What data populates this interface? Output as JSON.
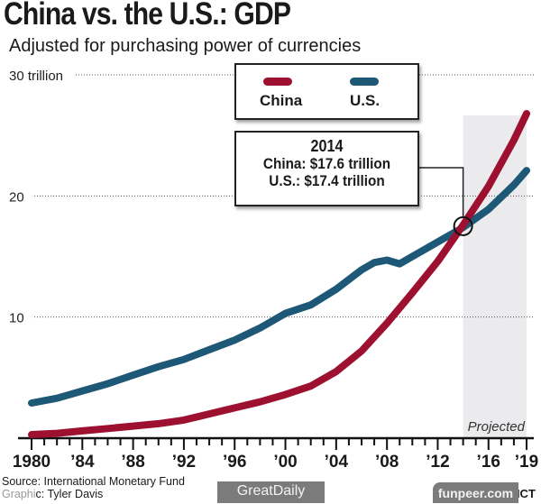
{
  "chart_data": {
    "type": "line",
    "title": "China vs. the U.S.: GDP",
    "subtitle": "Adjusted for purchasing power of currencies",
    "xlabel": "",
    "ylabel": "",
    "xlim": [
      1980,
      2019
    ],
    "ylim": [
      0,
      30
    ],
    "y_ticks": [
      {
        "value": 30,
        "label": "30 trillion"
      },
      {
        "value": 20,
        "label": "20"
      },
      {
        "value": 10,
        "label": "10"
      }
    ],
    "x_tick_labels": [
      {
        "value": 1980,
        "label": "1980"
      },
      {
        "value": 1984,
        "label": "’84"
      },
      {
        "value": 1988,
        "label": "’88"
      },
      {
        "value": 1992,
        "label": "’92"
      },
      {
        "value": 1996,
        "label": "’96"
      },
      {
        "value": 2000,
        "label": "’00"
      },
      {
        "value": 2004,
        "label": "’04"
      },
      {
        "value": 2008,
        "label": "’08"
      },
      {
        "value": 2012,
        "label": "’12"
      },
      {
        "value": 2016,
        "label": "’16"
      },
      {
        "value": 2019,
        "label": "’19"
      }
    ],
    "grid": "horizontal-dotted",
    "legend_position": "top-center",
    "series": [
      {
        "name": "China",
        "color": "#9e1030",
        "x": [
          1980,
          1982,
          1984,
          1986,
          1988,
          1990,
          1992,
          1994,
          1996,
          1998,
          2000,
          2002,
          2004,
          2006,
          2008,
          2010,
          2012,
          2014,
          2016,
          2018,
          2019
        ],
        "values": [
          0.3,
          0.4,
          0.6,
          0.8,
          1.0,
          1.2,
          1.5,
          2.0,
          2.5,
          3.0,
          3.6,
          4.3,
          5.5,
          7.2,
          9.5,
          12.0,
          14.6,
          17.6,
          20.8,
          24.6,
          26.8
        ]
      },
      {
        "name": "U.S.",
        "color": "#1d5877",
        "x": [
          1980,
          1982,
          1984,
          1986,
          1988,
          1990,
          1992,
          1994,
          1996,
          1998,
          2000,
          2002,
          2004,
          2006,
          2007,
          2008,
          2009,
          2010,
          2012,
          2014,
          2016,
          2018,
          2019
        ],
        "values": [
          2.9,
          3.3,
          3.9,
          4.5,
          5.2,
          5.9,
          6.5,
          7.3,
          8.1,
          9.1,
          10.3,
          11.0,
          12.3,
          13.9,
          14.5,
          14.7,
          14.4,
          15.0,
          16.2,
          17.4,
          18.9,
          20.9,
          22.1
        ]
      }
    ],
    "projected_region": {
      "from": 2014,
      "to": 2019,
      "label": "Projected"
    },
    "annotation": {
      "year": "2014",
      "line1": "China: $17.6 trillion",
      "line2": "U.S.: $17.4 trillion",
      "x": 2014,
      "y": 17.5
    }
  },
  "footer": {
    "source": "Source: International Monetary Fund",
    "graphic": "Graphic: Tyler Davis",
    "credit": "© 2014 MCT"
  },
  "watermarks": {
    "center": "GreatDaily",
    "right": "funpeer.com"
  }
}
